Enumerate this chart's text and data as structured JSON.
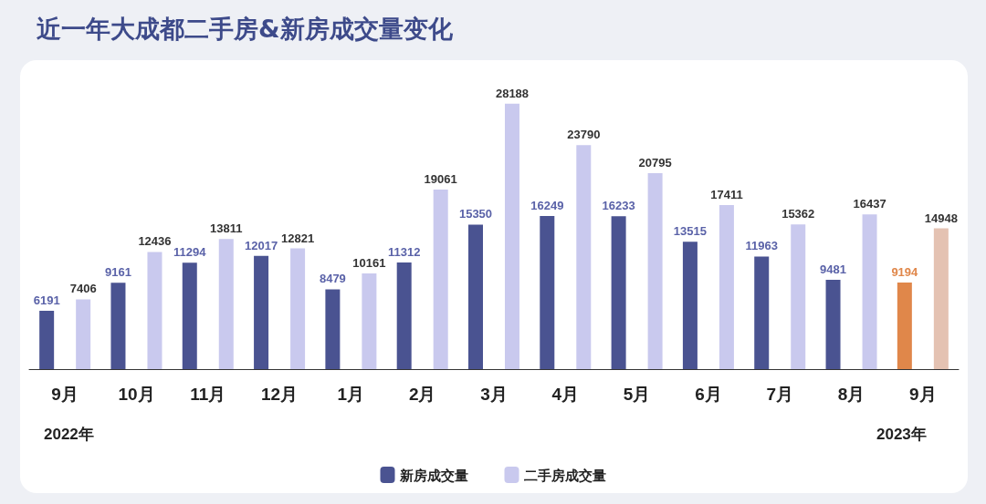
{
  "chart_data": {
    "type": "bar",
    "title": "近一年大成都二手房&新房成交量变化",
    "categories": [
      "9月",
      "10月",
      "11月",
      "12月",
      "1月",
      "2月",
      "3月",
      "4月",
      "5月",
      "6月",
      "7月",
      "8月",
      "9月"
    ],
    "series": [
      {
        "name": "新房成交量",
        "color": "#4a5391",
        "colors": [
          "#4a5391",
          "#4a5391",
          "#4a5391",
          "#4a5391",
          "#4a5391",
          "#4a5391",
          "#4a5391",
          "#4a5391",
          "#4a5391",
          "#4a5391",
          "#4a5391",
          "#4a5391",
          "#e0874a"
        ],
        "values": [
          6191,
          9161,
          11294,
          12017,
          8479,
          11312,
          15350,
          16249,
          16233,
          13515,
          11963,
          9481,
          9194
        ]
      },
      {
        "name": "二手房成交量",
        "color": "#c9c9ee",
        "colors": [
          "#c9c9ee",
          "#c9c9ee",
          "#c9c9ee",
          "#c9c9ee",
          "#c9c9ee",
          "#c9c9ee",
          "#c9c9ee",
          "#c9c9ee",
          "#c9c9ee",
          "#c9c9ee",
          "#c9c9ee",
          "#c9c9ee",
          "#e4c2b2"
        ],
        "values": [
          7406,
          12436,
          13811,
          12821,
          10161,
          19061,
          28188,
          23790,
          20795,
          17411,
          15362,
          16437,
          14948
        ]
      }
    ],
    "annotations": [
      "2022年",
      "2023年"
    ],
    "data_labels": true,
    "legend": "bottom"
  }
}
